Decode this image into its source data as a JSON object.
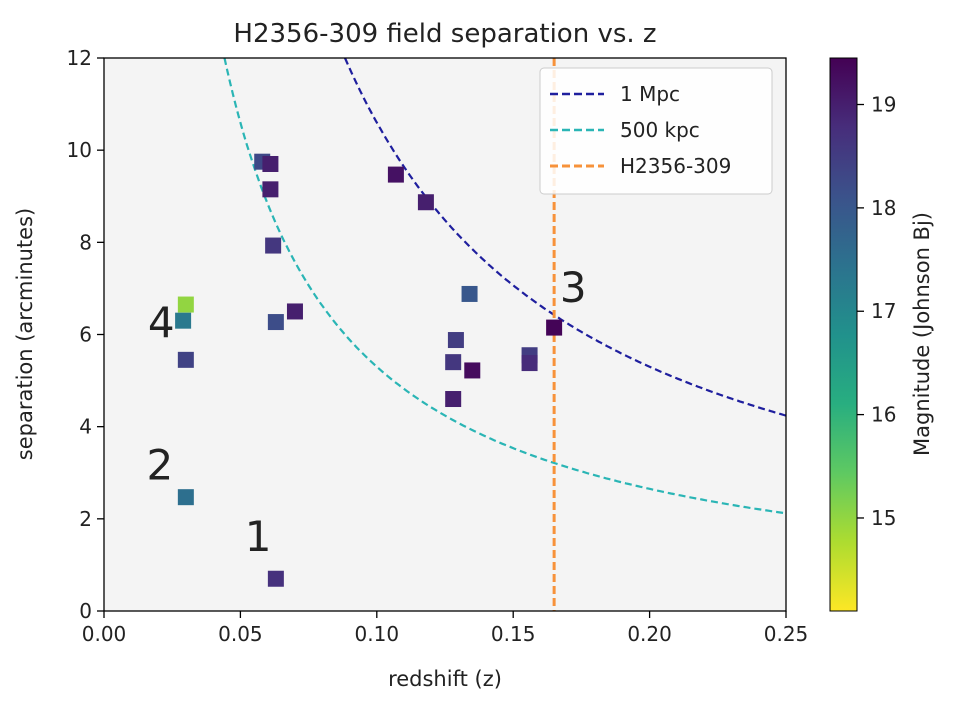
{
  "chart_data": {
    "type": "scatter",
    "title": "H2356-309 field separation vs. z",
    "xlabel": "redshift (z)",
    "ylabel": "separation (arcminutes)",
    "xlim": [
      0.0,
      0.25
    ],
    "ylim": [
      0,
      12
    ],
    "xticks": [
      0.0,
      0.05,
      0.1,
      0.15,
      0.2,
      0.25
    ],
    "xtick_labels": [
      "0.00",
      "0.05",
      "0.10",
      "0.15",
      "0.20",
      "0.25"
    ],
    "yticks": [
      0,
      2,
      4,
      6,
      8,
      10,
      12
    ],
    "ytick_labels": [
      "0",
      "2",
      "4",
      "6",
      "8",
      "10",
      "12"
    ],
    "grid": false,
    "background": "#f4f4f4",
    "legend": {
      "placement": "top-right",
      "entries": [
        {
          "label": "1 Mpc",
          "color": "#1f1f9e",
          "style": "dashed"
        },
        {
          "label": "500 kpc",
          "color": "#2ab5b5",
          "style": "dashed"
        },
        {
          "label": "H2356-309",
          "color": "#f7923a",
          "style": "dashed"
        }
      ]
    },
    "curves": [
      {
        "name": "1 Mpc",
        "color": "#1f1f9e",
        "k": 1.06
      },
      {
        "name": "500 kpc",
        "color": "#2ab5b5",
        "k": 0.53
      }
    ],
    "vline": {
      "name": "H2356-309",
      "x": 0.165,
      "color": "#f7923a"
    },
    "points": [
      {
        "x": 0.03,
        "y": 6.65,
        "mag": 15.0
      },
      {
        "x": 0.029,
        "y": 6.3,
        "mag": 17.3
      },
      {
        "x": 0.03,
        "y": 5.45,
        "mag": 18.4
      },
      {
        "x": 0.03,
        "y": 2.47,
        "mag": 17.5
      },
      {
        "x": 0.058,
        "y": 9.75,
        "mag": 18.3
      },
      {
        "x": 0.061,
        "y": 9.7,
        "mag": 19.0
      },
      {
        "x": 0.061,
        "y": 9.15,
        "mag": 19.0
      },
      {
        "x": 0.062,
        "y": 7.93,
        "mag": 18.6
      },
      {
        "x": 0.063,
        "y": 6.27,
        "mag": 18.2
      },
      {
        "x": 0.07,
        "y": 6.5,
        "mag": 19.0
      },
      {
        "x": 0.063,
        "y": 0.7,
        "mag": 18.7
      },
      {
        "x": 0.107,
        "y": 9.47,
        "mag": 19.2
      },
      {
        "x": 0.118,
        "y": 8.87,
        "mag": 19.0
      },
      {
        "x": 0.134,
        "y": 6.88,
        "mag": 18.0
      },
      {
        "x": 0.129,
        "y": 5.88,
        "mag": 18.5
      },
      {
        "x": 0.128,
        "y": 5.4,
        "mag": 18.6
      },
      {
        "x": 0.135,
        "y": 5.22,
        "mag": 19.3
      },
      {
        "x": 0.128,
        "y": 4.6,
        "mag": 19.0
      },
      {
        "x": 0.156,
        "y": 5.55,
        "mag": 18.5
      },
      {
        "x": 0.156,
        "y": 5.38,
        "mag": 18.8
      },
      {
        "x": 0.165,
        "y": 6.15,
        "mag": 19.4
      }
    ],
    "annotations": [
      {
        "text": "1",
        "x": 0.0565,
        "y": 1.55
      },
      {
        "text": "2",
        "x": 0.0205,
        "y": 3.1
      },
      {
        "text": "3",
        "x": 0.172,
        "y": 6.95
      },
      {
        "text": "4",
        "x": 0.021,
        "y": 6.2
      }
    ],
    "colorbar": {
      "label": "Magnitude (Johnson Bj)",
      "range": [
        14.1,
        19.45
      ],
      "ticks": [
        15,
        16,
        17,
        18,
        19
      ],
      "tick_labels": [
        "15",
        "16",
        "17",
        "18",
        "19"
      ],
      "colormap": "viridis_r"
    }
  }
}
